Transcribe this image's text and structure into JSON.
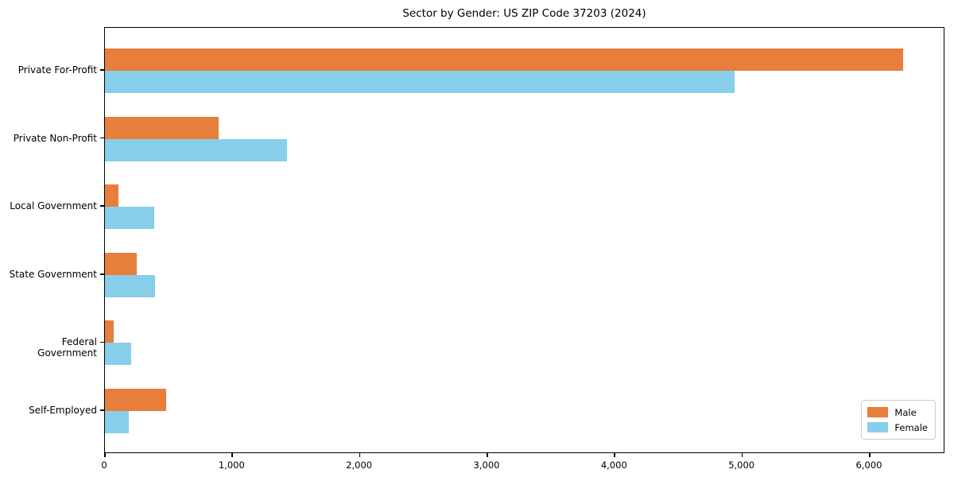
{
  "title": "Sector by Gender: US ZIP Code 37203 (2024)",
  "chart_data": {
    "type": "bar",
    "orientation": "horizontal",
    "title": "Sector by Gender: US ZIP Code 37203 (2024)",
    "categories": [
      "Private For-Profit",
      "Private Non-Profit",
      "Local Government",
      "State Government",
      "Federal Government",
      "Self-Employed"
    ],
    "series": [
      {
        "name": "Male",
        "color": "#e87e3b",
        "values": [
          6260,
          890,
          105,
          250,
          70,
          480
        ]
      },
      {
        "name": "Female",
        "color": "#87ceeb",
        "values": [
          4940,
          1430,
          385,
          390,
          205,
          185
        ]
      }
    ],
    "xlabel": "",
    "ylabel": "",
    "xlim": [
      0,
      6580
    ],
    "xticks": [
      0,
      1000,
      2000,
      3000,
      4000,
      5000,
      6000
    ],
    "xtick_labels": [
      "0",
      "1,000",
      "2,000",
      "3,000",
      "4,000",
      "5,000",
      "6,000"
    ],
    "grid": false,
    "legend_position": "lower right"
  },
  "legend": {
    "items": [
      {
        "label": "Male",
        "color": "#e87e3b"
      },
      {
        "label": "Female",
        "color": "#87ceeb"
      }
    ]
  }
}
